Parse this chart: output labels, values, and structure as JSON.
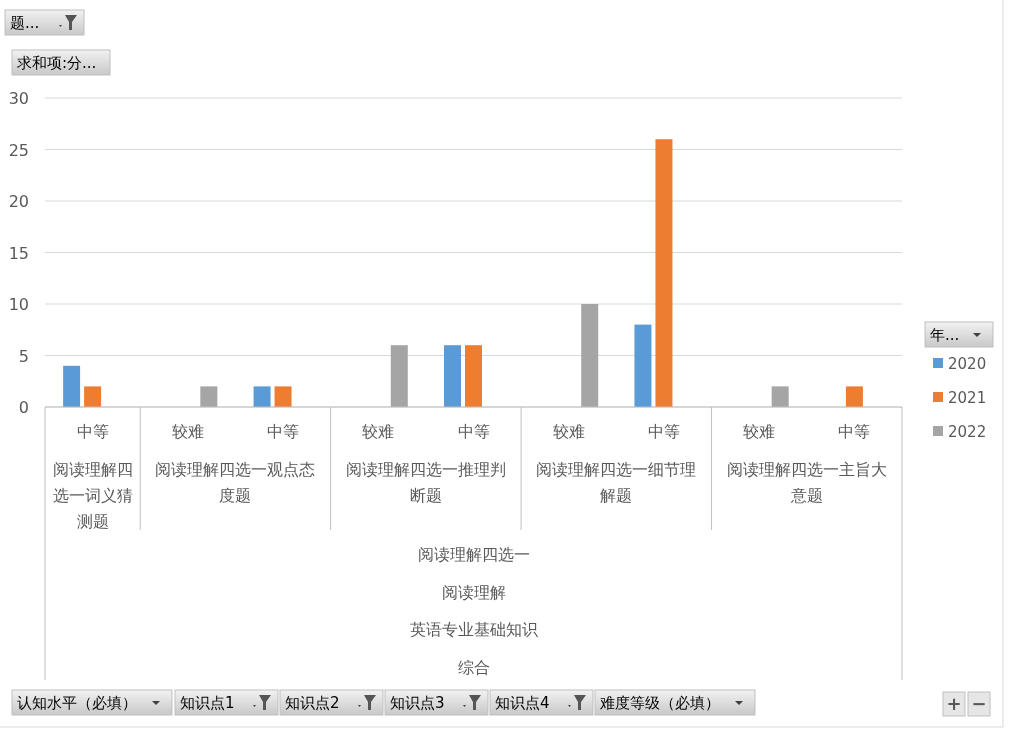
{
  "chart_data": {
    "type": "bar",
    "categories": [
      "中等",
      "较难",
      "中等",
      "较难",
      "中等",
      "较难",
      "中等",
      "较难",
      "中等"
    ],
    "series": [
      {
        "name": "2020",
        "color": "#5b9bd5",
        "values": [
          4,
          null,
          2,
          null,
          6,
          null,
          8,
          null,
          null
        ]
      },
      {
        "name": "2021",
        "color": "#ed7d31",
        "values": [
          2,
          null,
          2,
          null,
          6,
          null,
          26,
          null,
          2
        ]
      },
      {
        "name": "2022",
        "color": "#a5a5a5",
        "values": [
          null,
          2,
          null,
          6,
          null,
          10,
          null,
          2,
          null
        ]
      }
    ],
    "ylim": [
      0,
      30
    ],
    "yticks": [
      0,
      5,
      10,
      15,
      20,
      25,
      30
    ],
    "grid": "y",
    "legend": "right",
    "legend_title": "年...",
    "annotations": [
      "阅读理解四选一词义猜测题",
      "阅读理解四选一观点态度题",
      "阅读理解四选一推理判断题",
      "阅读理解四选一细节理解题",
      "阅读理解四选一主旨大意题",
      "阅读理解四选一",
      "阅读理解",
      "英语专业基础知识",
      "综合",
      "题...",
      "求和项:分...",
      "认知水平（必填）",
      "知识点1",
      "知识点2",
      "知识点3",
      "知识点4",
      "难度等级（必填）",
      "+",
      "−"
    ]
  }
}
